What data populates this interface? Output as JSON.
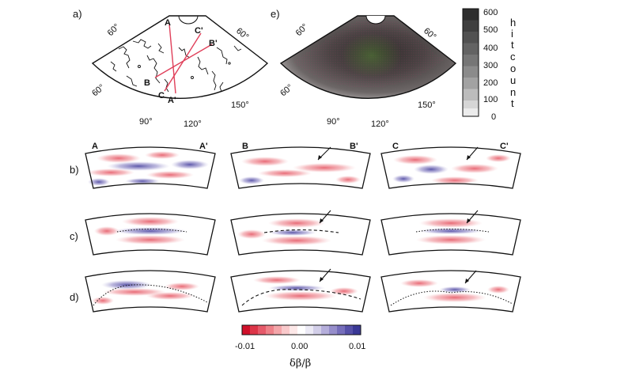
{
  "panel_labels": {
    "a": "a)",
    "b": "b)",
    "c": "c)",
    "d": "d)",
    "e": "e)"
  },
  "map_a": {
    "lon_labels": [
      "60°",
      "60°",
      "60°",
      "90°",
      "120°",
      "150°"
    ],
    "section_markers": [
      "A",
      "C'",
      "B'",
      "B",
      "C",
      "A'"
    ]
  },
  "map_e": {
    "lon_labels": [
      "60°",
      "60°",
      "60°",
      "90°",
      "120°",
      "150°"
    ]
  },
  "hitcount_bar": {
    "ticks": [
      "600",
      "500",
      "400",
      "300",
      "200",
      "100",
      "0"
    ],
    "title_letters": [
      "h",
      "i",
      "t",
      "c",
      "o",
      "u",
      "n",
      "t"
    ]
  },
  "sections": {
    "col1": {
      "left": "A",
      "right": "A'"
    },
    "col2": {
      "left": "B",
      "right": "B'"
    },
    "col3": {
      "left": "C",
      "right": "C'"
    }
  },
  "colorbar": {
    "ticks": [
      "-0.01",
      "0.00",
      "0.01"
    ],
    "unit": "δβ/β",
    "colors": [
      "#d0102a",
      "#dd3548",
      "#e65a6a",
      "#ee8189",
      "#f4a6aa",
      "#f9c9cb",
      "#fde8e8",
      "#ffffff",
      "#eceaf5",
      "#d2cee8",
      "#b5aedb",
      "#968ecb",
      "#766ebb",
      "#5650a8",
      "#3a3896"
    ]
  }
}
